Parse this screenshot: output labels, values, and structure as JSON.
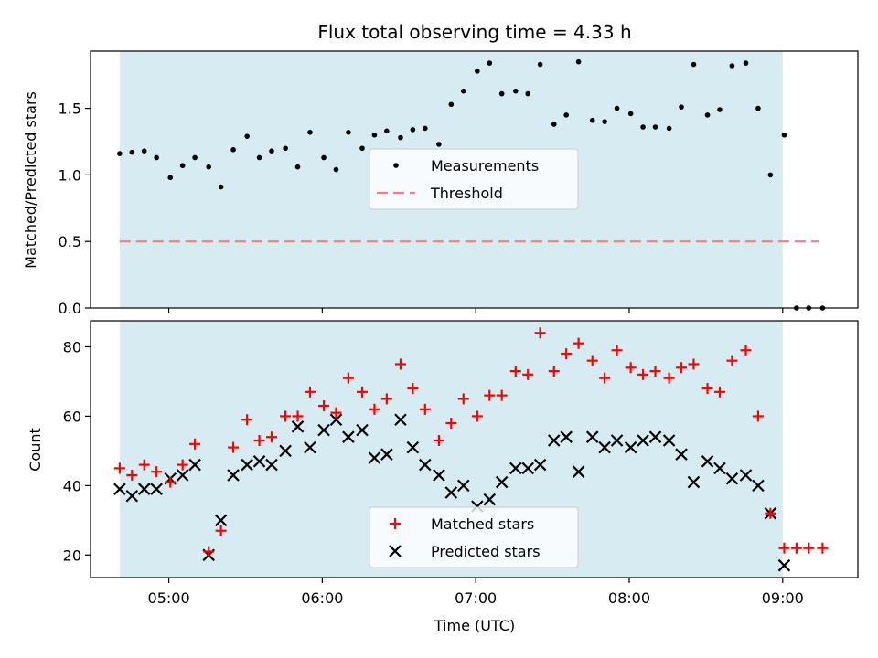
{
  "chart_data": {
    "type": "scatter",
    "title": "Flux total observing time = 4.33 h",
    "xlabel": "Time (UTC)",
    "x_ticks": [
      "05:00",
      "06:00",
      "07:00",
      "08:00",
      "09:00"
    ],
    "x_tick_hours": [
      5,
      6,
      7,
      8,
      9
    ],
    "xlim_hours": [
      4.49,
      9.49
    ],
    "shaded_span_hours": [
      4.68,
      9.0
    ],
    "colors": {
      "shade": "#add8e6",
      "measure": "#000000",
      "threshold": "#f08080",
      "matched": "#ff0000",
      "predicted": "#000000"
    },
    "panels": [
      {
        "ylabel": "Matched/Predicted stars",
        "ylim": [
          0,
          1.93
        ],
        "y_ticks": [
          "0.0",
          "0.5",
          "1.0",
          "1.5"
        ],
        "y_tick_values": [
          0,
          0.5,
          1.0,
          1.5
        ],
        "legend": [
          "Measurements",
          "Threshold"
        ],
        "threshold": {
          "value": 0.5,
          "x_range_hours": [
            4.68,
            9.24
          ]
        },
        "x_hours": [
          4.68,
          4.76,
          4.84,
          4.92,
          5.01,
          5.09,
          5.17,
          5.26,
          5.34,
          5.42,
          5.51,
          5.59,
          5.67,
          5.76,
          5.84,
          5.92,
          6.01,
          6.09,
          6.17,
          6.26,
          6.34,
          6.42,
          6.51,
          6.59,
          6.67,
          6.76,
          6.84,
          6.92,
          7.01,
          7.09,
          7.17,
          7.26,
          7.34,
          7.42,
          7.51,
          7.59,
          7.67,
          7.76,
          7.84,
          7.92,
          8.01,
          8.09,
          8.17,
          8.26,
          8.34,
          8.42,
          8.51,
          8.59,
          8.67,
          8.76,
          8.84,
          8.92,
          9.01,
          9.09,
          9.17,
          9.26
        ],
        "values": [
          1.16,
          1.17,
          1.18,
          1.13,
          0.98,
          1.07,
          1.13,
          1.06,
          0.91,
          1.19,
          1.29,
          1.13,
          1.18,
          1.2,
          1.06,
          1.32,
          1.13,
          1.04,
          1.32,
          1.2,
          1.3,
          1.33,
          1.28,
          1.34,
          1.35,
          1.23,
          1.53,
          1.63,
          1.78,
          1.84,
          1.61,
          1.63,
          1.61,
          1.83,
          1.38,
          1.45,
          1.85,
          1.41,
          1.4,
          1.5,
          1.46,
          1.36,
          1.36,
          1.35,
          1.51,
          1.83,
          1.45,
          1.49,
          1.82,
          1.84,
          1.5,
          1.0,
          1.3,
          0.0,
          0.0,
          0.0
        ]
      },
      {
        "ylabel": "Count",
        "ylim": [
          13.5,
          87.5
        ],
        "y_ticks": [
          "20",
          "40",
          "60",
          "80"
        ],
        "y_tick_values": [
          20,
          40,
          60,
          80
        ],
        "legend": [
          "Matched stars",
          "Predicted stars"
        ],
        "x_hours": [
          4.68,
          4.76,
          4.84,
          4.92,
          5.01,
          5.09,
          5.17,
          5.26,
          5.34,
          5.42,
          5.51,
          5.59,
          5.67,
          5.76,
          5.84,
          5.92,
          6.01,
          6.09,
          6.17,
          6.26,
          6.34,
          6.42,
          6.51,
          6.59,
          6.67,
          6.76,
          6.84,
          6.92,
          7.01,
          7.09,
          7.17,
          7.26,
          7.34,
          7.42,
          7.51,
          7.59,
          7.67,
          7.76,
          7.84,
          7.92,
          8.01,
          8.09,
          8.17,
          8.26,
          8.34,
          8.42,
          8.51,
          8.59,
          8.67,
          8.76,
          8.84,
          8.92,
          9.01,
          9.09,
          9.17,
          9.26
        ],
        "series": [
          {
            "name": "Matched stars",
            "marker": "plus",
            "values": [
              45,
              43,
              46,
              44,
              41,
              46,
              52,
              21,
              27,
              51,
              59,
              53,
              54,
              60,
              60,
              67,
              63,
              61,
              71,
              67,
              62,
              65,
              75,
              68,
              62,
              53,
              58,
              65,
              60,
              66,
              66,
              73,
              72,
              84,
              73,
              78,
              81,
              76,
              71,
              79,
              74,
              72,
              73,
              71,
              74,
              75,
              68,
              67,
              76,
              79,
              60,
              32,
              22,
              22,
              22,
              22
            ]
          },
          {
            "name": "Predicted stars",
            "marker": "x",
            "values": [
              39,
              37,
              39,
              39,
              42,
              43,
              46,
              20,
              30,
              43,
              46,
              47,
              46,
              50,
              57,
              51,
              56,
              59,
              54,
              56,
              48,
              49,
              59,
              51,
              46,
              43,
              38,
              40,
              34,
              36,
              41,
              45,
              45,
              46,
              53,
              54,
              44,
              54,
              51,
              53,
              51,
              53,
              54,
              53,
              49,
              41,
              47,
              45,
              42,
              43,
              40,
              32,
              17,
              null,
              null,
              null
            ]
          }
        ]
      }
    ]
  }
}
